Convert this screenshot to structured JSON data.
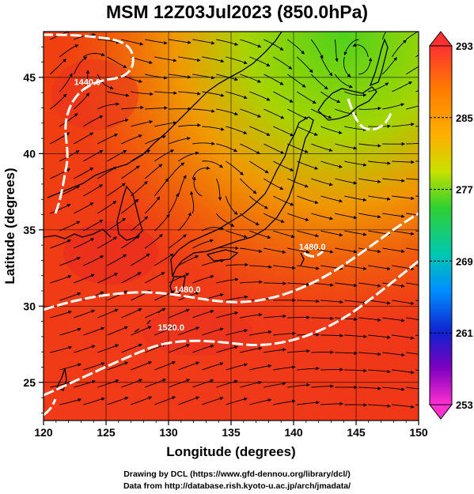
{
  "title": "MSM 12Z03Jul2023 (850.0hPa)",
  "x_axis": {
    "label": "Longitude (degrees)",
    "ticks": [
      {
        "value": 120,
        "label": "120"
      },
      {
        "value": 125,
        "label": "125"
      },
      {
        "value": 130,
        "label": "130"
      },
      {
        "value": 135,
        "label": "135"
      },
      {
        "value": 140,
        "label": "140"
      },
      {
        "value": 145,
        "label": "145"
      },
      {
        "value": 150,
        "label": "150"
      }
    ]
  },
  "y_axis": {
    "label": "Latitude  (degrees)",
    "ticks": [
      {
        "value": 25,
        "label": "25"
      },
      {
        "value": 30,
        "label": "30"
      },
      {
        "value": 35,
        "label": "35"
      },
      {
        "value": 40,
        "label": "40"
      },
      {
        "value": 45,
        "label": "45"
      }
    ]
  },
  "contours": [
    {
      "label": "1440.0",
      "lon": 123.5,
      "lat": 44.5
    },
    {
      "label": "1480.0",
      "lon": 131.5,
      "lat": 30.9
    },
    {
      "label": "1520.0",
      "lon": 130.2,
      "lat": 28.4
    },
    {
      "label": "1480.0",
      "lon": 141.5,
      "lat": 33.7
    }
  ],
  "colorbar": {
    "labels": [
      "293",
      "285",
      "277",
      "269",
      "261",
      "253"
    ],
    "colors": [
      "#ff2a2a",
      "#ff7a00",
      "#ffb400",
      "#c8e000",
      "#40d020",
      "#00c8a0",
      "#0088ff",
      "#1020d0",
      "#8000c0",
      "#ff2ad0"
    ]
  },
  "credits": {
    "line1": "Drawing by DCL (https://www.gfd-dennou.org/library/dcl/)",
    "line2": "Data from http://database.rish.kyoto-u.ac.jp/arch/jmadata/"
  }
}
